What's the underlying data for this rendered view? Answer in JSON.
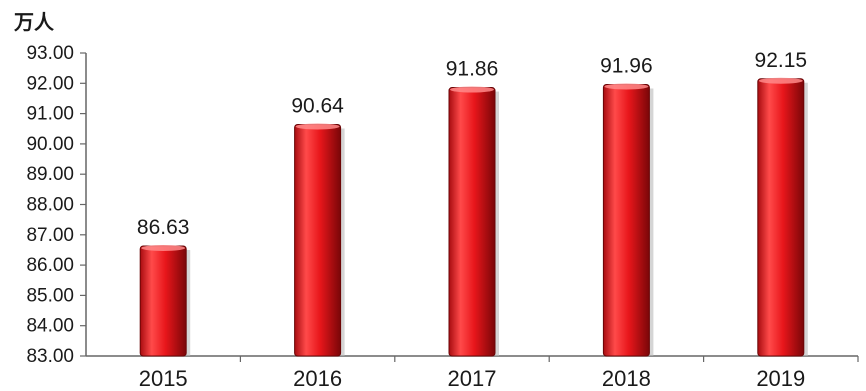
{
  "chart_data": {
    "type": "bar",
    "title": "",
    "unit_label": "万人",
    "xlabel": "",
    "ylabel": "万人",
    "categories": [
      "2015",
      "2016",
      "2017",
      "2018",
      "2019"
    ],
    "values": [
      86.63,
      90.64,
      91.86,
      91.96,
      92.15
    ],
    "value_labels": [
      "86.63",
      "90.64",
      "91.86",
      "91.96",
      "92.15"
    ],
    "ylim": [
      83.0,
      93.0
    ],
    "yticks": [
      "83.00",
      "84.00",
      "85.00",
      "86.00",
      "87.00",
      "88.00",
      "89.00",
      "90.00",
      "91.00",
      "92.00",
      "93.00"
    ],
    "grid": false,
    "legend": "none",
    "bar_color": "#e8161b",
    "bar_highlight": "#ff5a5a",
    "bar_shadow": "#8c0a0d"
  }
}
